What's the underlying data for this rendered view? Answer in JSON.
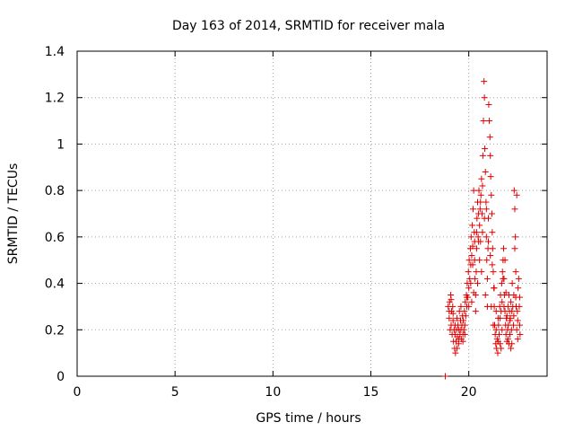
{
  "chart_data": {
    "type": "scatter",
    "title": "Day 163 of 2014, SRMTID for receiver mala",
    "xlabel": "GPS time / hours",
    "ylabel": "SRMTID / TECUs",
    "xlim": [
      0,
      24
    ],
    "ylim": [
      0,
      1.4
    ],
    "x_ticks": [
      "0",
      "5",
      "10",
      "15",
      "20"
    ],
    "y_ticks": [
      "0",
      "0.2",
      "0.4",
      "0.6",
      "0.8",
      "1",
      "1.2",
      "1.4"
    ],
    "grid": true,
    "marker": "plus",
    "colors": {
      "points": "#e00000",
      "grid": "#a0a0a0"
    },
    "series": [
      {
        "points": [
          [
            18.8,
            0.0
          ],
          [
            18.95,
            0.3
          ],
          [
            19.0,
            0.25
          ],
          [
            19.02,
            0.32
          ],
          [
            19.05,
            0.2
          ],
          [
            19.08,
            0.35
          ],
          [
            19.1,
            0.22
          ],
          [
            19.12,
            0.28
          ],
          [
            19.15,
            0.18
          ],
          [
            19.18,
            0.3
          ],
          [
            19.2,
            0.24
          ],
          [
            19.22,
            0.15
          ],
          [
            19.25,
            0.2
          ],
          [
            19.28,
            0.12
          ],
          [
            19.3,
            0.18
          ],
          [
            19.32,
            0.1
          ],
          [
            19.35,
            0.15
          ],
          [
            19.38,
            0.2
          ],
          [
            19.4,
            0.25
          ],
          [
            19.42,
            0.17
          ],
          [
            19.45,
            0.22
          ],
          [
            19.48,
            0.14
          ],
          [
            19.5,
            0.2
          ],
          [
            19.52,
            0.28
          ],
          [
            19.55,
            0.18
          ],
          [
            19.58,
            0.24
          ],
          [
            19.6,
            0.3
          ],
          [
            19.62,
            0.16
          ],
          [
            19.65,
            0.22
          ],
          [
            19.68,
            0.26
          ],
          [
            19.7,
            0.18
          ],
          [
            19.72,
            0.24
          ],
          [
            19.75,
            0.2
          ],
          [
            19.78,
            0.28
          ],
          [
            19.8,
            0.22
          ],
          [
            19.82,
            0.32
          ],
          [
            19.85,
            0.26
          ],
          [
            19.88,
            0.35
          ],
          [
            19.9,
            0.3
          ],
          [
            19.92,
            0.4
          ],
          [
            19.95,
            0.34
          ],
          [
            19.98,
            0.45
          ],
          [
            20.0,
            0.38
          ],
          [
            20.02,
            0.5
          ],
          [
            20.05,
            0.42
          ],
          [
            20.08,
            0.55
          ],
          [
            20.1,
            0.48
          ],
          [
            20.12,
            0.6
          ],
          [
            20.15,
            0.52
          ],
          [
            20.18,
            0.65
          ],
          [
            20.2,
            0.56
          ],
          [
            20.22,
            0.72
          ],
          [
            20.25,
            0.8
          ],
          [
            20.28,
            0.62
          ],
          [
            20.3,
            0.5
          ],
          [
            20.32,
            0.42
          ],
          [
            20.35,
            0.35
          ],
          [
            20.38,
            0.45
          ],
          [
            20.4,
            0.55
          ],
          [
            20.42,
            0.68
          ],
          [
            20.45,
            0.75
          ],
          [
            20.48,
            0.6
          ],
          [
            20.5,
            0.7
          ],
          [
            20.52,
            0.8
          ],
          [
            20.55,
            0.65
          ],
          [
            20.58,
            0.72
          ],
          [
            20.6,
            0.58
          ],
          [
            20.62,
            0.78
          ],
          [
            20.65,
            0.85
          ],
          [
            20.68,
            0.7
          ],
          [
            20.7,
            0.62
          ],
          [
            20.72,
            0.95
          ],
          [
            20.75,
            1.1
          ],
          [
            20.78,
            1.27
          ],
          [
            20.8,
            1.2
          ],
          [
            20.82,
            0.98
          ],
          [
            20.85,
            0.88
          ],
          [
            20.88,
            0.75
          ],
          [
            20.9,
            0.6
          ],
          [
            20.92,
            0.5
          ],
          [
            20.95,
            0.42
          ],
          [
            20.98,
            0.55
          ],
          [
            21.0,
            0.68
          ],
          [
            21.02,
            1.17
          ],
          [
            21.05,
            1.1
          ],
          [
            21.08,
            1.03
          ],
          [
            21.1,
            0.95
          ],
          [
            21.12,
            0.86
          ],
          [
            21.15,
            0.78
          ],
          [
            21.18,
            0.7
          ],
          [
            21.2,
            0.62
          ],
          [
            21.22,
            0.55
          ],
          [
            21.25,
            0.45
          ],
          [
            21.28,
            0.38
          ],
          [
            21.3,
            0.3
          ],
          [
            21.32,
            0.22
          ],
          [
            21.35,
            0.18
          ],
          [
            21.38,
            0.14
          ],
          [
            21.4,
            0.2
          ],
          [
            21.42,
            0.12
          ],
          [
            21.45,
            0.16
          ],
          [
            21.48,
            0.1
          ],
          [
            21.5,
            0.15
          ],
          [
            21.52,
            0.22
          ],
          [
            21.55,
            0.18
          ],
          [
            21.58,
            0.3
          ],
          [
            21.6,
            0.25
          ],
          [
            21.62,
            0.35
          ],
          [
            21.65,
            0.28
          ],
          [
            21.68,
            0.4
          ],
          [
            21.7,
            0.32
          ],
          [
            21.72,
            0.45
          ],
          [
            21.75,
            0.5
          ],
          [
            21.78,
            0.55
          ],
          [
            21.8,
            0.42
          ],
          [
            21.82,
            0.35
          ],
          [
            21.85,
            0.28
          ],
          [
            21.88,
            0.22
          ],
          [
            21.9,
            0.18
          ],
          [
            21.92,
            0.25
          ],
          [
            21.95,
            0.15
          ],
          [
            21.98,
            0.2
          ],
          [
            22.0,
            0.3
          ],
          [
            22.02,
            0.22
          ],
          [
            22.05,
            0.35
          ],
          [
            22.08,
            0.28
          ],
          [
            22.1,
            0.18
          ],
          [
            22.12,
            0.25
          ],
          [
            22.15,
            0.32
          ],
          [
            22.18,
            0.2
          ],
          [
            22.2,
            0.28
          ],
          [
            22.22,
            0.4
          ],
          [
            22.25,
            0.3
          ],
          [
            22.28,
            0.22
          ],
          [
            22.3,
            0.35
          ],
          [
            22.32,
            0.8
          ],
          [
            22.35,
            0.72
          ],
          [
            22.38,
            0.6
          ],
          [
            22.4,
            0.45
          ],
          [
            22.42,
            0.3
          ],
          [
            22.45,
            0.2
          ],
          [
            22.48,
            0.28
          ],
          [
            22.5,
            0.16
          ],
          [
            22.52,
            0.38
          ],
          [
            22.55,
            0.42
          ],
          [
            22.58,
            0.3
          ],
          [
            22.6,
            0.22
          ],
          [
            22.62,
            0.18
          ],
          [
            19.0,
            0.28
          ],
          [
            19.1,
            0.33
          ],
          [
            19.2,
            0.27
          ],
          [
            19.3,
            0.22
          ],
          [
            19.4,
            0.12
          ],
          [
            19.5,
            0.16
          ],
          [
            19.6,
            0.2
          ],
          [
            19.7,
            0.15
          ],
          [
            19.8,
            0.18
          ],
          [
            19.9,
            0.34
          ],
          [
            20.0,
            0.3
          ],
          [
            20.1,
            0.4
          ],
          [
            20.2,
            0.48
          ],
          [
            20.3,
            0.58
          ],
          [
            20.4,
            0.62
          ],
          [
            20.5,
            0.58
          ],
          [
            20.6,
            0.75
          ],
          [
            20.7,
            0.82
          ],
          [
            20.8,
            0.68
          ],
          [
            20.9,
            0.72
          ],
          [
            21.0,
            0.58
          ],
          [
            21.1,
            0.52
          ],
          [
            21.2,
            0.48
          ],
          [
            21.3,
            0.38
          ],
          [
            21.4,
            0.28
          ],
          [
            21.5,
            0.25
          ],
          [
            21.6,
            0.14
          ],
          [
            21.7,
            0.2
          ],
          [
            21.8,
            0.3
          ],
          [
            21.9,
            0.36
          ],
          [
            22.0,
            0.16
          ],
          [
            22.1,
            0.24
          ],
          [
            22.2,
            0.14
          ],
          [
            22.3,
            0.26
          ],
          [
            22.4,
            0.34
          ],
          [
            22.5,
            0.24
          ],
          [
            22.6,
            0.34
          ],
          [
            20.85,
            0.35
          ],
          [
            20.95,
            0.3
          ],
          [
            21.15,
            0.3
          ],
          [
            21.25,
            0.22
          ],
          [
            20.65,
            0.45
          ],
          [
            20.55,
            0.5
          ],
          [
            20.45,
            0.4
          ],
          [
            20.35,
            0.28
          ],
          [
            20.25,
            0.36
          ],
          [
            20.15,
            0.32
          ],
          [
            22.35,
            0.55
          ],
          [
            22.45,
            0.78
          ],
          [
            21.85,
            0.5
          ],
          [
            21.75,
            0.42
          ],
          [
            21.65,
            0.12
          ],
          [
            22.15,
            0.12
          ],
          [
            21.95,
            0.26
          ],
          [
            22.05,
            0.14
          ]
        ]
      }
    ]
  }
}
